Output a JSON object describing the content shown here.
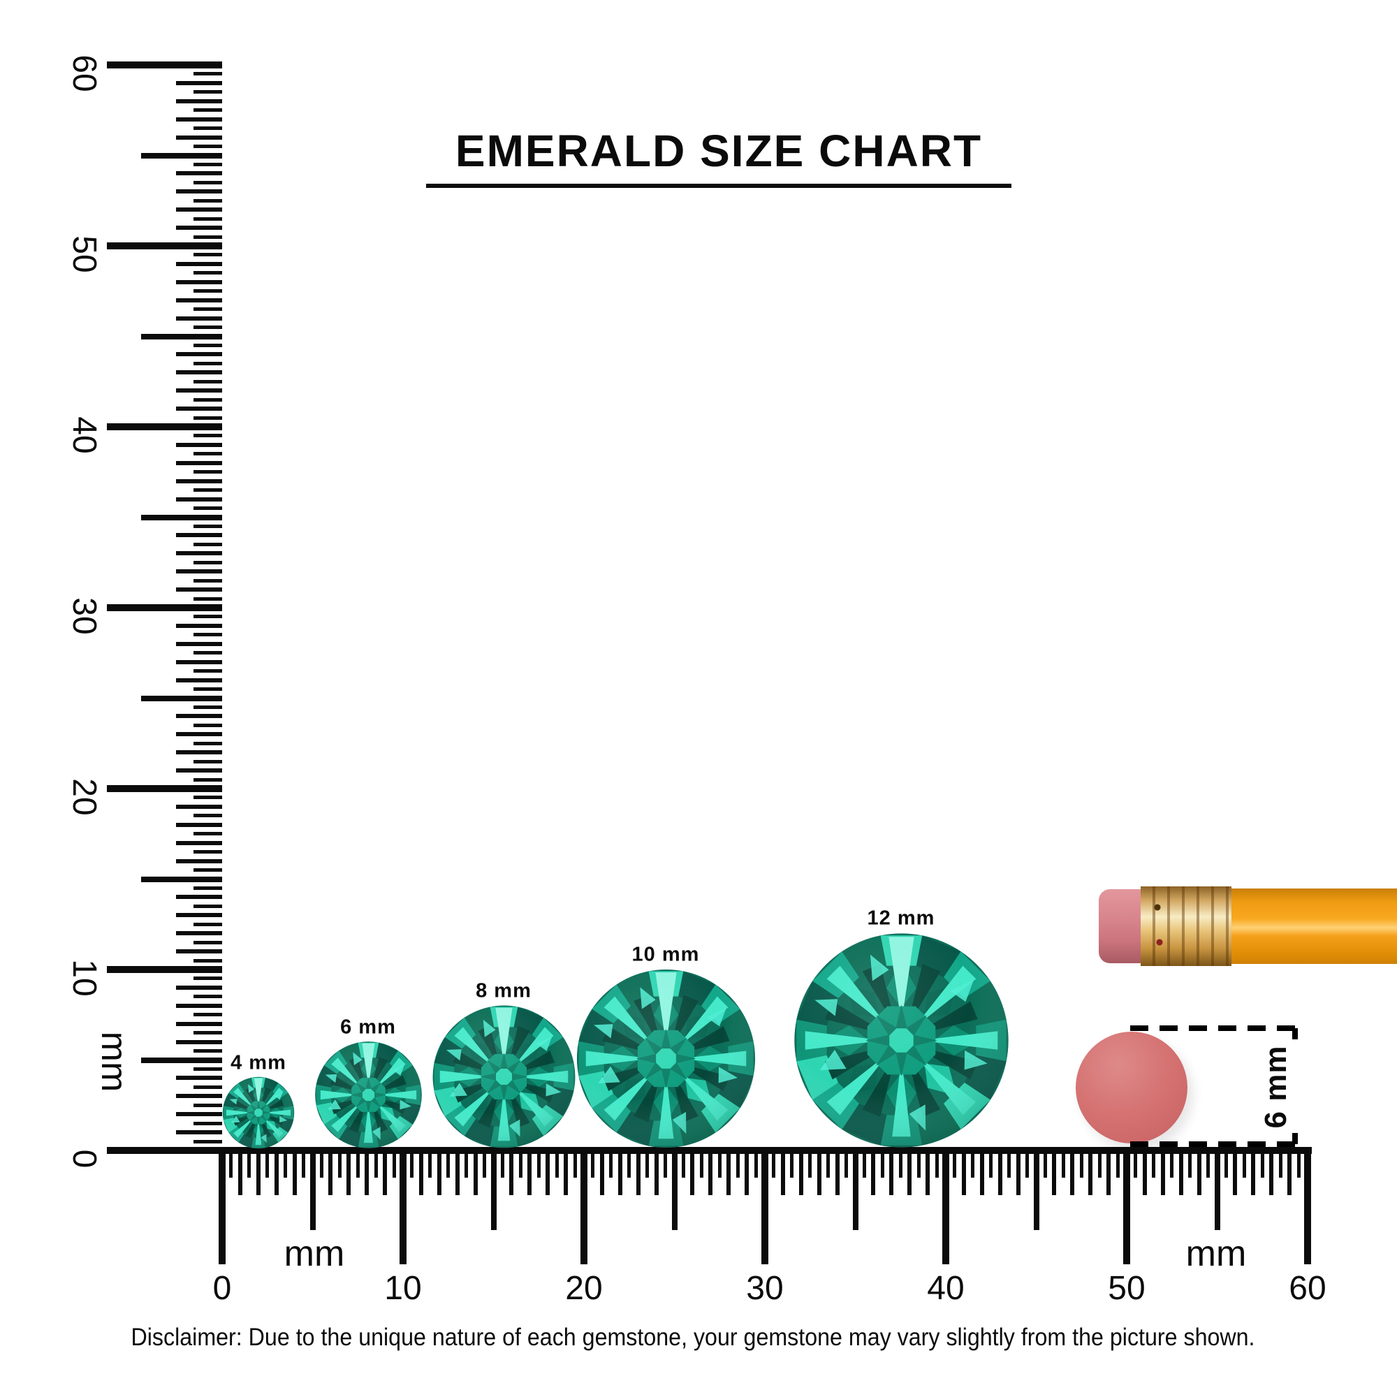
{
  "title": {
    "text": "EMERALD SIZE CHART"
  },
  "rulers": {
    "range_mm": 60,
    "minor_step_mm": 0.5,
    "vertical": {
      "labels": [
        "0",
        "10",
        "20",
        "30",
        "40",
        "50",
        "60"
      ],
      "unit": "mm"
    },
    "horizontal": {
      "labels": [
        "0",
        "10",
        "20",
        "30",
        "40",
        "50",
        "60"
      ],
      "unit_left": "mm",
      "unit_right": "mm"
    }
  },
  "gems": [
    {
      "label": "4 mm",
      "size_mm": 4
    },
    {
      "label": "6 mm",
      "size_mm": 6
    },
    {
      "label": "8 mm",
      "size_mm": 8
    },
    {
      "label": "10 mm",
      "size_mm": 10
    },
    {
      "label": "12 mm",
      "size_mm": 12
    }
  ],
  "eraser_reference": {
    "label": "6 mm",
    "diameter_mm": 6
  },
  "disclaimer": {
    "text": "Disclaimer: Due to the unique nature of each gemstone, your gemstone may vary slightly from the picture shown."
  },
  "colors": {
    "ink": "#0b0b0b",
    "gem_green": "#0f9478",
    "gem_cyan": "#41e8c8",
    "gem_dark": "#07584a",
    "eraser_circle_pink": "#d57272",
    "pencil_eraser_pink": "#d8858c",
    "pencil_ferrule_gold": "#e9c67c",
    "pencil_body_orange": "#f8a81f"
  }
}
